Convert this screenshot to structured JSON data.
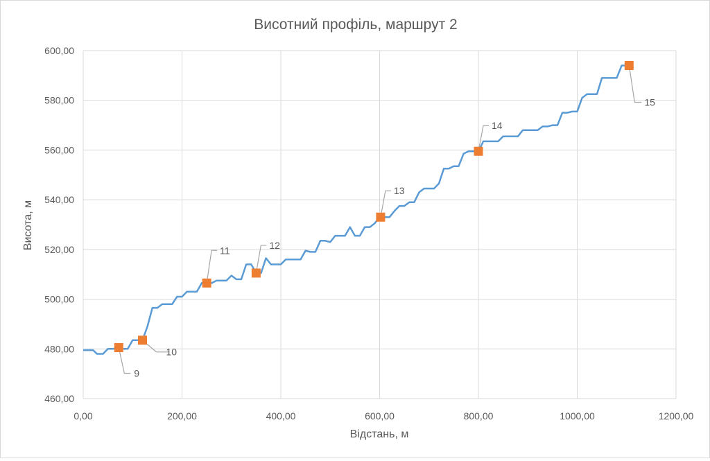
{
  "chart_data": {
    "type": "line",
    "title": "Висотний профіль, маршрут 2",
    "xlabel": "Відстань, м",
    "ylabel": "Висота, м",
    "xlim": [
      0,
      1200
    ],
    "ylim": [
      460,
      600
    ],
    "x_ticks": [
      0,
      200,
      400,
      600,
      800,
      1000,
      1200
    ],
    "x_tick_labels": [
      "0,00",
      "200,00",
      "400,00",
      "600,00",
      "800,00",
      "1000,00",
      "1200,00"
    ],
    "y_ticks": [
      460,
      480,
      500,
      520,
      540,
      560,
      580,
      600
    ],
    "y_tick_labels": [
      "460,00",
      "480,00",
      "500,00",
      "520,00",
      "540,00",
      "560,00",
      "580,00",
      "600,00"
    ],
    "grid": true,
    "legend": "none",
    "colors": {
      "profile": "#5b9bd5",
      "marker": "#ed7d31",
      "leader": "#a6a6a6",
      "grid": "#d9d9d9",
      "text": "#595959"
    },
    "series": [
      {
        "x": [
          0,
          20,
          28,
          40,
          50,
          60,
          70,
          80,
          90,
          100,
          110,
          120,
          130,
          140,
          150,
          160,
          170,
          180,
          190,
          200,
          210,
          220,
          230,
          240,
          250,
          260,
          270,
          280,
          290,
          300,
          310,
          320,
          330,
          340,
          350,
          360,
          370,
          380,
          390,
          400,
          410,
          420,
          430,
          440,
          450,
          460,
          470,
          480,
          490,
          500,
          510,
          520,
          530,
          540,
          550,
          560,
          570,
          580,
          590,
          600,
          610,
          620,
          630,
          640,
          650,
          660,
          670,
          680,
          690,
          700,
          710,
          720,
          730,
          740,
          750,
          760,
          770,
          780,
          790,
          800,
          810,
          820,
          830,
          840,
          850,
          860,
          870,
          880,
          890,
          900,
          910,
          920,
          930,
          940,
          950,
          960,
          970,
          980,
          990,
          1000,
          1010,
          1020,
          1030,
          1040,
          1050,
          1060,
          1070,
          1080,
          1090,
          1100
        ],
        "y": [
          479.5,
          479.5,
          478,
          478,
          480,
          480,
          480.5,
          480,
          480,
          483.5,
          483.5,
          483.5,
          489,
          496.5,
          496.5,
          498,
          498,
          498,
          501,
          501,
          503,
          503,
          503,
          506.5,
          506.5,
          506.5,
          507.5,
          507.5,
          507.5,
          509.5,
          508,
          508,
          514,
          514,
          510.5,
          510.5,
          516.5,
          514,
          514,
          514,
          516,
          516,
          516,
          516,
          519.5,
          519,
          519,
          523.5,
          523.5,
          523,
          525.5,
          525.5,
          525.5,
          529,
          525.5,
          525.5,
          529,
          529,
          530.5,
          533,
          533,
          533,
          535.5,
          537.5,
          537.5,
          539,
          539,
          543,
          544.5,
          544.5,
          544.5,
          546.5,
          552.5,
          552.5,
          553.5,
          553.5,
          558.5,
          559.5,
          559.5,
          559.5,
          563.5,
          563.5,
          563.5,
          563.5,
          565.5,
          565.5,
          565.5,
          565.5,
          568,
          568,
          568,
          568,
          569.5,
          569.5,
          570,
          570,
          575,
          575,
          575.5,
          575.5,
          581,
          582.5,
          582.5,
          582.5,
          589,
          589,
          589,
          589,
          594,
          594
        ]
      },
      {
        "x": [
          72,
          120,
          250,
          350,
          602,
          800,
          1105
        ],
        "y": [
          480.5,
          483.5,
          506.5,
          510.5,
          533,
          559.5,
          594
        ],
        "labels": [
          "9",
          "10",
          "11",
          "12",
          "13",
          "14",
          "15"
        ]
      }
    ]
  }
}
